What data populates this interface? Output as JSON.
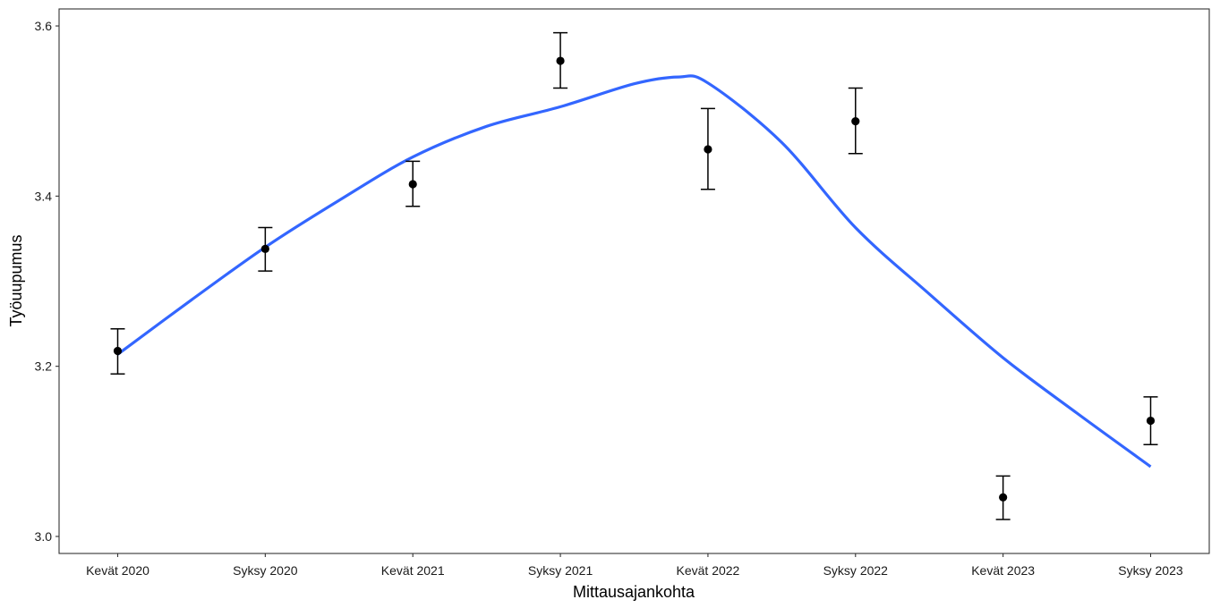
{
  "chart_data": {
    "type": "scatter",
    "xlabel": "Mittausajankohta",
    "ylabel": "Työuupumus",
    "categories": [
      "Kevät 2020",
      "Syksy 2020",
      "Kevät 2021",
      "Syksy 2021",
      "Kevät 2022",
      "Syksy 2022",
      "Kevät 2023",
      "Syksy 2023"
    ],
    "ylim": [
      2.98,
      3.62
    ],
    "yticks": [
      3.0,
      3.2,
      3.4,
      3.6
    ],
    "ytick_labels": [
      "3.0",
      "3.2",
      "3.4",
      "3.6"
    ],
    "points": {
      "values": [
        3.218,
        3.338,
        3.414,
        3.559,
        3.455,
        3.488,
        3.046,
        3.136
      ],
      "lower": [
        3.191,
        3.312,
        3.388,
        3.527,
        3.408,
        3.45,
        3.02,
        3.108
      ],
      "upper": [
        3.244,
        3.363,
        3.441,
        3.592,
        3.503,
        3.527,
        3.071,
        3.164
      ],
      "color": "#000000"
    },
    "smooth": {
      "x": [
        1,
        1.5,
        2,
        2.5,
        3,
        3.5,
        4,
        4.5,
        4.8,
        5,
        5.5,
        6,
        6.5,
        7,
        7.5,
        8
      ],
      "y": [
        3.214,
        3.278,
        3.34,
        3.395,
        3.446,
        3.482,
        3.505,
        3.532,
        3.54,
        3.533,
        3.463,
        3.363,
        3.285,
        3.21,
        3.145,
        3.082
      ],
      "color": "#3366FF"
    },
    "grid": false,
    "legend": "none"
  }
}
